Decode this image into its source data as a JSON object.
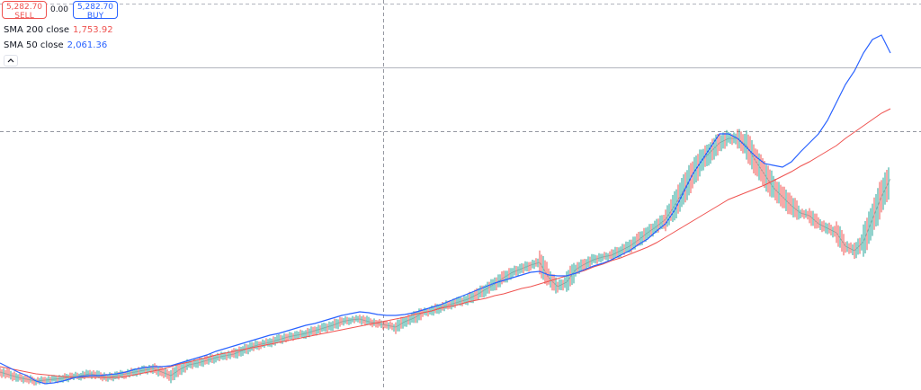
{
  "trade": {
    "sell_price": "5,282.70",
    "sell_label": "SELL",
    "spread": "0.00",
    "buy_price": "5,282.70",
    "buy_label": "BUY"
  },
  "indicators": [
    {
      "label": "SMA 200 close",
      "value": "1,753.92",
      "color": "#ef5350"
    },
    {
      "label": "SMA 50 close",
      "value": "2,061.36",
      "color": "#2962ff"
    }
  ],
  "colors": {
    "up": "#26a69a",
    "down": "#ef5350",
    "sma200": "#ef5350",
    "sma50": "#2962ff",
    "grid": "#cfd3dc"
  },
  "icons": {
    "collapse": "chevron-up-icon"
  },
  "chart_data": {
    "type": "line",
    "title": "",
    "xlabel": "",
    "ylabel": "",
    "grid": false,
    "x_index": [
      0,
      10,
      20,
      30,
      40,
      50,
      60,
      70,
      80,
      90,
      100,
      110,
      120,
      130,
      140,
      150,
      160,
      170,
      180,
      190,
      200,
      210,
      220,
      230,
      240,
      250,
      260,
      270,
      280,
      290,
      300,
      310,
      320,
      330,
      340,
      350,
      360,
      370,
      380,
      390,
      400,
      410,
      420,
      430,
      440,
      450,
      460,
      470,
      480,
      490,
      500,
      510,
      520,
      530,
      540,
      550,
      560,
      570,
      580,
      590,
      600,
      610,
      620,
      630,
      640,
      650,
      660,
      670,
      680,
      690,
      700,
      710,
      720,
      730,
      740,
      750,
      760,
      770,
      780,
      790,
      800,
      810,
      820,
      830,
      840,
      850,
      860,
      870,
      880,
      890,
      900,
      910,
      920,
      930,
      940,
      950,
      960,
      970,
      980,
      990
    ],
    "ylim": [
      0,
      434
    ],
    "series": [
      {
        "name": "price",
        "values": [
          20,
          17,
          14,
          12,
          10,
          11,
          12,
          13,
          15,
          16,
          18,
          16,
          14,
          16,
          18,
          20,
          22,
          24,
          20,
          16,
          23,
          28,
          30,
          33,
          36,
          38,
          40,
          44,
          48,
          51,
          53,
          56,
          59,
          61,
          63,
          66,
          69,
          72,
          76,
          78,
          79,
          76,
          74,
          72,
          70,
          76,
          80,
          86,
          88,
          92,
          95,
          98,
          101,
          106,
          112,
          118,
          125,
          131,
          135,
          139,
          142,
          125,
          115,
          120,
          134,
          140,
          145,
          148,
          150,
          155,
          160,
          167,
          175,
          182,
          190,
          205,
          222,
          240,
          255,
          265,
          275,
          280,
          280,
          272,
          255,
          240,
          225,
          215,
          205,
          197,
          194,
          185,
          180,
          175,
          160,
          155,
          165,
          190,
          215,
          235
        ]
      },
      {
        "name": "SMA 200 close",
        "values": [
          26,
          24,
          22,
          20,
          18,
          17,
          16,
          15,
          14,
          14,
          14,
          14,
          14,
          14,
          15,
          17,
          19,
          21,
          23,
          26,
          29,
          31,
          34,
          36,
          39,
          41,
          43,
          45,
          47,
          49,
          51,
          53,
          55,
          57,
          59,
          61,
          63,
          65,
          67,
          69,
          71,
          73,
          75,
          77,
          79,
          81,
          84,
          86,
          88,
          91,
          93,
          95,
          98,
          100,
          102,
          105,
          107,
          110,
          113,
          115,
          118,
          121,
          124,
          127,
          130,
          133,
          137,
          140,
          144,
          147,
          151,
          155,
          159,
          164,
          170,
          176,
          182,
          188,
          194,
          200,
          206,
          212,
          216,
          220,
          224,
          228,
          233,
          238,
          243,
          249,
          254,
          260,
          266,
          272,
          280,
          287,
          294,
          301,
          308,
          313
        ]
      },
      {
        "name": "SMA 50 close",
        "values": [
          30,
          25,
          20,
          16,
          10,
          7,
          8,
          10,
          13,
          15,
          16,
          16,
          17,
          18,
          20,
          23,
          25,
          26,
          26,
          27,
          30,
          33,
          36,
          39,
          43,
          46,
          49,
          52,
          55,
          58,
          61,
          63,
          66,
          69,
          72,
          74,
          77,
          80,
          83,
          85,
          87,
          86,
          84,
          83,
          83,
          84,
          86,
          89,
          92,
          95,
          99,
          103,
          107,
          111,
          115,
          119,
          122,
          125,
          128,
          131,
          132,
          128,
          127,
          127,
          130,
          134,
          138,
          141,
          145,
          150,
          155,
          162,
          168,
          177,
          185,
          200,
          220,
          240,
          255,
          270,
          285,
          285,
          280,
          270,
          260,
          252,
          250,
          248,
          254,
          265,
          275,
          285,
          300,
          320,
          340,
          355,
          375,
          390,
          395,
          375
        ]
      }
    ]
  }
}
